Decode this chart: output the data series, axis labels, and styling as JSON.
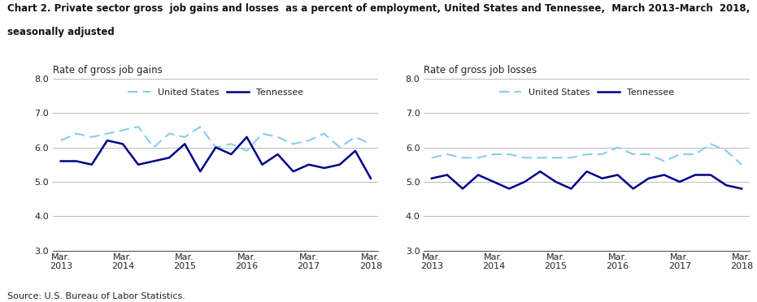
{
  "title_line1": "Chart 2. Private sector gross  job gains and losses  as a percent of employment, United States and Tennessee,  March 2013–March  2018,",
  "title_line2": "seasonally adjusted",
  "left_ylabel": "Rate of gross job gains",
  "right_ylabel": "Rate of gross job losses",
  "source": "Source: U.S. Bureau of Labor Statistics.",
  "x_labels": [
    "Mar.\n2013",
    "Mar.\n2014",
    "Mar.\n2015",
    "Mar.\n2016",
    "Mar.\n2017",
    "Mar.\n2018"
  ],
  "x_positions": [
    0,
    4,
    8,
    12,
    16,
    20
  ],
  "ylim": [
    3.0,
    8.0
  ],
  "yticks": [
    3.0,
    4.0,
    5.0,
    6.0,
    7.0,
    8.0
  ],
  "gains_us": [
    6.2,
    6.4,
    6.3,
    6.4,
    6.5,
    6.6,
    6.0,
    6.4,
    6.3,
    6.6,
    6.0,
    6.1,
    5.9,
    6.4,
    6.3,
    6.1,
    6.2,
    6.4,
    6.0,
    6.3,
    6.1
  ],
  "gains_tn": [
    5.6,
    5.6,
    5.5,
    6.2,
    6.1,
    5.5,
    5.6,
    5.7,
    6.1,
    5.3,
    6.0,
    5.8,
    6.3,
    5.5,
    5.8,
    5.3,
    5.5,
    5.4,
    5.5,
    5.9,
    5.1
  ],
  "losses_us": [
    5.7,
    5.8,
    5.7,
    5.7,
    5.8,
    5.8,
    5.7,
    5.7,
    5.7,
    5.7,
    5.8,
    5.8,
    6.0,
    5.8,
    5.8,
    5.6,
    5.8,
    5.8,
    6.1,
    5.9,
    5.5
  ],
  "losses_tn": [
    5.1,
    5.2,
    4.8,
    5.2,
    5.0,
    4.8,
    5.0,
    5.3,
    5.0,
    4.8,
    5.3,
    5.1,
    5.2,
    4.8,
    5.1,
    5.2,
    5.0,
    5.2,
    5.2,
    4.9,
    4.8
  ],
  "us_color": "#87CEEB",
  "tn_color": "#00008B",
  "us_label": "United States",
  "tn_label": "Tennessee"
}
